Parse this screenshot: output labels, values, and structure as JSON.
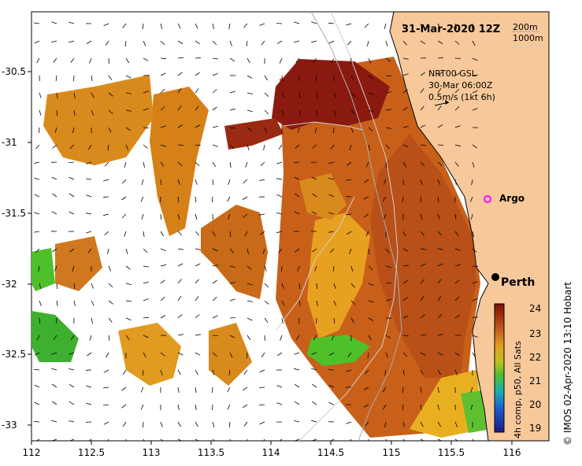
{
  "title": "31-Mar-2020 12Z",
  "scale": {
    "line1": "200m",
    "line2": "1000m"
  },
  "reference": {
    "line1": "NRT00 GSL",
    "line2": "30-Mar 06:00Z",
    "line3": "0.5m/s (1kt 6h)"
  },
  "places": {
    "argo": "Argo",
    "perth": "Perth"
  },
  "x_ticks": [
    "112",
    "112.5",
    "113",
    "113.5",
    "114",
    "114.5",
    "115",
    "115.5",
    "116"
  ],
  "y_ticks": [
    "-30.5",
    "-31",
    "-31.5",
    "-32",
    "-32.5",
    "-33"
  ],
  "colorbar": {
    "ticks": [
      "24",
      "23",
      "22",
      "21",
      "20",
      "19"
    ],
    "label": "4h comp, p50, All Sats",
    "colors": {
      "top": "#8a1a10",
      "upper": "#d2691e",
      "mid": "#e8b020",
      "green": "#4ec02a",
      "cyan": "#1ab0b0",
      "blue": "#1e40c8",
      "bottom": "#1a1a80"
    }
  },
  "credit": "© IMOS 02-Apr-2020 13:10 Hobart",
  "colors": {
    "land": "#f7c89a",
    "sst_dark": "#8a1a10",
    "sst_mid": "#c85a10",
    "sst_light": "#e29a20",
    "sst_green": "#4ec02a"
  }
}
